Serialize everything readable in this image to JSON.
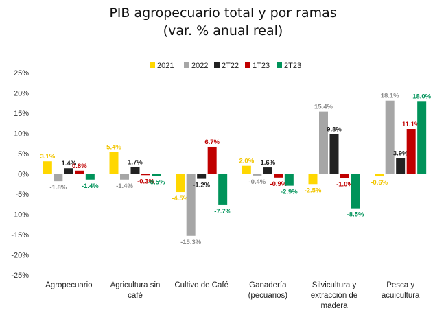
{
  "title": "PIB agropecuario total y por ramas",
  "subtitle": "(var. % anual real)",
  "chart_data": {
    "type": "bar",
    "categories": [
      [
        "Agropecuario"
      ],
      [
        "Agricultura sin",
        "café"
      ],
      [
        "Cultivo de Café"
      ],
      [
        "Ganadería",
        "(pecuarios)"
      ],
      [
        "Silvicultura y",
        "extracción de",
        "madera"
      ],
      [
        "Pesca y",
        "acuicultura"
      ]
    ],
    "series": [
      {
        "name": "2021",
        "color": "#FFD700",
        "label_color": "#F2C500",
        "values": [
          3.1,
          5.4,
          -4.5,
          2.0,
          -2.5,
          -0.6
        ],
        "labels": [
          "3.1%",
          "5.4%",
          "-4.5%",
          "2.0%",
          "-2.5%",
          "-0.6%"
        ]
      },
      {
        "name": "2022",
        "color": "#A6A6A6",
        "label_color": "#8C8C8C",
        "values": [
          -1.8,
          -1.4,
          -15.3,
          -0.4,
          15.4,
          18.1
        ],
        "labels": [
          "-1.8%",
          "-1.4%",
          "-15.3%",
          "-0.4%",
          "15.4%",
          "18.1%"
        ]
      },
      {
        "name": "2T22",
        "color": "#222222",
        "label_color": "#222222",
        "values": [
          1.4,
          1.7,
          -1.2,
          1.6,
          9.8,
          3.9
        ],
        "labels": [
          "1.4%",
          "1.7%",
          "-1.2%",
          "1.6%",
          "9.8%",
          "3.9%"
        ]
      },
      {
        "name": "1T23",
        "color": "#C00000",
        "label_color": "#C00000",
        "values": [
          0.8,
          -0.3,
          6.7,
          -0.9,
          -1.0,
          11.1
        ],
        "labels": [
          "0.8%",
          "-0.3%",
          "6.7%",
          "-0.9%",
          "-1.0%",
          "11.1%"
        ]
      },
      {
        "name": "2T23",
        "color": "#00935A",
        "label_color": "#00935A",
        "values": [
          -1.4,
          -0.5,
          -7.7,
          -2.9,
          -8.5,
          18.0
        ],
        "labels": [
          "-1.4%",
          "-0.5%",
          "-7.7%",
          "-2.9%",
          "-8.5%",
          "18.0%"
        ]
      }
    ],
    "ylim": [
      -25,
      25
    ],
    "yticks": [
      "25%",
      "20%",
      "15%",
      "10%",
      "5%",
      "0%",
      "-5%",
      "-10%",
      "-15%",
      "-20%",
      "-25%"
    ],
    "ytick_values": [
      25,
      20,
      15,
      10,
      5,
      0,
      -5,
      -10,
      -15,
      -20,
      -25
    ],
    "legend_position": "top-center",
    "grid": false
  }
}
